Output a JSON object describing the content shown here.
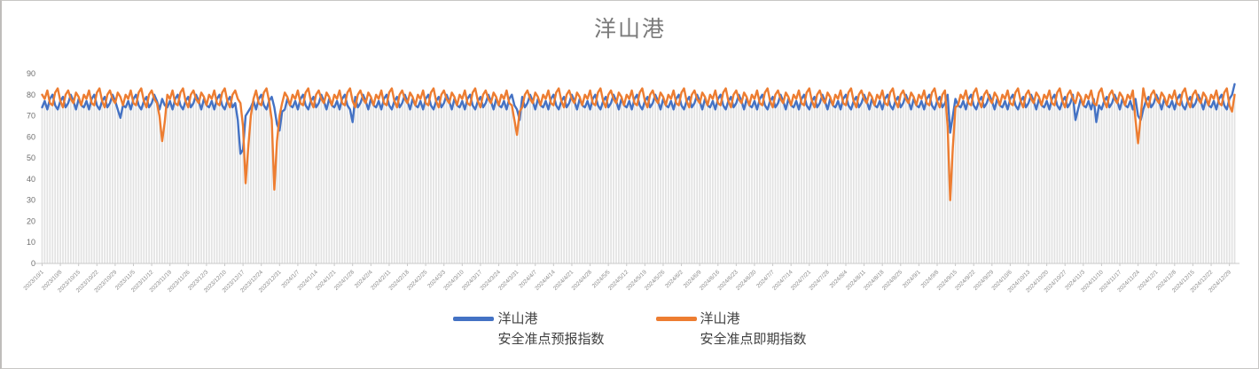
{
  "title": "洋山港",
  "legend": [
    {
      "line1": "洋山港",
      "line2": "安全准点预报指数",
      "color": "#4472C4"
    },
    {
      "line1": "洋山港",
      "line2": "安全准点即期指数",
      "color": "#ED7D31"
    }
  ],
  "chart_data": {
    "type": "line",
    "title": "洋山港",
    "x_unit": "day",
    "x_start_date": "2023/10/1",
    "x_end_date": "2024/12/31",
    "x_tick_interval_days": 7,
    "x_tick_labels": [
      "2023/10/1",
      "2023/10/8",
      "2023/10/15",
      "2023/10/22",
      "2023/10/29",
      "2023/11/5",
      "2023/11/12",
      "2023/11/19",
      "2023/11/26",
      "2023/12/3",
      "2023/12/10",
      "2023/12/17",
      "2023/12/24",
      "2023/12/31",
      "2024/1/7",
      "2024/1/14",
      "2024/1/21",
      "2024/1/28",
      "2024/2/4",
      "2024/2/11",
      "2024/2/18",
      "2024/2/25",
      "2024/3/3",
      "2024/3/10",
      "2024/3/17",
      "2024/3/24",
      "2024/3/31",
      "2024/4/7",
      "2024/4/14",
      "2024/4/21",
      "2024/4/28",
      "2024/5/5",
      "2024/5/12",
      "2024/5/19",
      "2024/5/26",
      "2024/6/2",
      "2024/6/9",
      "2024/6/16",
      "2024/6/23",
      "2024/6/30",
      "2024/7/7",
      "2024/7/14",
      "2024/7/21",
      "2024/7/28",
      "2024/8/4",
      "2024/8/11",
      "2024/8/18",
      "2024/8/25",
      "2024/9/1",
      "2024/9/8",
      "2024/9/15",
      "2024/9/22",
      "2024/9/29",
      "2024/10/6",
      "2024/10/13",
      "2024/10/20",
      "2024/10/27",
      "2024/11/3",
      "2024/11/10",
      "2024/11/17",
      "2024/11/24",
      "2024/12/1",
      "2024/12/8",
      "2024/12/15",
      "2024/12/22",
      "2024/12/29"
    ],
    "ylim": [
      0,
      90
    ],
    "y_ticks": [
      0,
      10,
      20,
      30,
      40,
      50,
      60,
      70,
      80,
      90
    ],
    "stripe_color": "#e2e2e2",
    "axis_color": "#c9c9c9",
    "legend_position": "bottom",
    "notable_events": [
      {
        "date": "2023/11/16",
        "series": "即期",
        "low": 58
      },
      {
        "date": "2023/12/16",
        "series": "预报",
        "low": 52
      },
      {
        "date": "2023/12/18",
        "series": "即期",
        "low": 38
      },
      {
        "date": "2023/12/29",
        "series": "即期",
        "low": 35
      },
      {
        "date": "2024/3/31",
        "series": "即期",
        "low": 61
      },
      {
        "date": "2024/9/13",
        "series": "即期",
        "low": 30
      },
      {
        "date": "2024/11/24",
        "series": "即期",
        "low": 57
      },
      {
        "date": "2024/12/31",
        "series": "预报",
        "high": 85
      }
    ],
    "series": [
      {
        "name": "洋山港 安全准点预报指数",
        "color": "#4472C4",
        "values": [
          74,
          77,
          73,
          78,
          80,
          75,
          73,
          77,
          79,
          74,
          76,
          80,
          77,
          73,
          78,
          75,
          74,
          77,
          73,
          78,
          80,
          75,
          73,
          77,
          79,
          74,
          76,
          80,
          77,
          73,
          69,
          75,
          74,
          77,
          73,
          78,
          80,
          75,
          73,
          77,
          79,
          74,
          76,
          80,
          77,
          73,
          78,
          75,
          74,
          77,
          73,
          78,
          80,
          75,
          73,
          77,
          79,
          74,
          76,
          80,
          77,
          73,
          78,
          75,
          74,
          77,
          73,
          78,
          80,
          75,
          73,
          77,
          79,
          74,
          76,
          68,
          52,
          54,
          70,
          72,
          74,
          77,
          73,
          78,
          80,
          75,
          73,
          77,
          79,
          74,
          66,
          63,
          72,
          73,
          78,
          75,
          74,
          77,
          73,
          78,
          80,
          75,
          73,
          77,
          79,
          74,
          76,
          80,
          77,
          73,
          78,
          75,
          74,
          77,
          73,
          78,
          80,
          75,
          73,
          67,
          79,
          74,
          76,
          80,
          77,
          73,
          78,
          75,
          74,
          77,
          73,
          78,
          80,
          75,
          73,
          77,
          79,
          74,
          76,
          80,
          77,
          73,
          78,
          75,
          74,
          77,
          73,
          78,
          80,
          75,
          73,
          77,
          79,
          74,
          76,
          80,
          77,
          73,
          78,
          75,
          74,
          77,
          73,
          78,
          80,
          75,
          73,
          77,
          79,
          74,
          76,
          80,
          77,
          73,
          78,
          75,
          74,
          77,
          73,
          78,
          80,
          75,
          73,
          68,
          79,
          74,
          76,
          80,
          77,
          73,
          78,
          75,
          74,
          77,
          73,
          78,
          80,
          75,
          73,
          77,
          79,
          74,
          76,
          80,
          77,
          73,
          78,
          75,
          74,
          77,
          73,
          78,
          80,
          75,
          73,
          77,
          79,
          74,
          76,
          80,
          77,
          73,
          78,
          75,
          74,
          77,
          73,
          78,
          80,
          75,
          73,
          77,
          79,
          74,
          76,
          80,
          77,
          73,
          78,
          75,
          74,
          77,
          73,
          78,
          80,
          75,
          73,
          77,
          79,
          74,
          76,
          80,
          77,
          73,
          78,
          75,
          74,
          77,
          73,
          78,
          80,
          75,
          73,
          77,
          79,
          74,
          76,
          80,
          77,
          73,
          78,
          75,
          74,
          77,
          73,
          78,
          80,
          75,
          73,
          77,
          79,
          74,
          76,
          80,
          77,
          73,
          78,
          75,
          74,
          77,
          73,
          78,
          80,
          75,
          73,
          77,
          79,
          74,
          76,
          80,
          77,
          73,
          78,
          75,
          74,
          77,
          73,
          78,
          80,
          75,
          73,
          77,
          79,
          74,
          76,
          80,
          77,
          73,
          78,
          75,
          74,
          77,
          73,
          78,
          80,
          75,
          73,
          77,
          79,
          74,
          76,
          80,
          77,
          73,
          78,
          75,
          74,
          77,
          73,
          78,
          80,
          75,
          73,
          77,
          79,
          74,
          76,
          80,
          62,
          70,
          78,
          75,
          74,
          77,
          73,
          78,
          80,
          75,
          73,
          77,
          79,
          74,
          76,
          80,
          77,
          73,
          78,
          75,
          74,
          77,
          73,
          78,
          80,
          75,
          73,
          77,
          79,
          74,
          76,
          80,
          77,
          73,
          78,
          75,
          74,
          77,
          73,
          78,
          80,
          75,
          73,
          77,
          79,
          74,
          76,
          80,
          68,
          73,
          78,
          75,
          74,
          77,
          73,
          78,
          67,
          75,
          73,
          77,
          79,
          74,
          76,
          80,
          77,
          73,
          78,
          75,
          74,
          77,
          73,
          78,
          70,
          68,
          73,
          77,
          79,
          74,
          76,
          80,
          77,
          73,
          78,
          75,
          74,
          77,
          73,
          78,
          80,
          75,
          73,
          77,
          79,
          74,
          76,
          80,
          77,
          73,
          78,
          75,
          74,
          77,
          73,
          78,
          80,
          75,
          73,
          78,
          80,
          85
        ]
      },
      {
        "name": "洋山港 安全准点即期指数",
        "color": "#ED7D31",
        "values": [
          80,
          78,
          82,
          76,
          75,
          81,
          83,
          77,
          74,
          80,
          82,
          78,
          76,
          81,
          79,
          75,
          80,
          78,
          82,
          76,
          75,
          81,
          83,
          77,
          74,
          80,
          82,
          78,
          76,
          81,
          79,
          75,
          80,
          78,
          82,
          76,
          75,
          81,
          83,
          77,
          74,
          80,
          82,
          78,
          76,
          70,
          58,
          67,
          80,
          78,
          82,
          76,
          75,
          81,
          83,
          77,
          74,
          80,
          82,
          78,
          76,
          81,
          79,
          75,
          80,
          78,
          82,
          76,
          75,
          81,
          83,
          77,
          74,
          80,
          82,
          78,
          76,
          65,
          38,
          55,
          70,
          78,
          82,
          76,
          75,
          81,
          83,
          77,
          68,
          35,
          58,
          70,
          76,
          81,
          79,
          75,
          80,
          78,
          82,
          76,
          75,
          81,
          83,
          77,
          74,
          80,
          82,
          78,
          76,
          81,
          79,
          75,
          80,
          78,
          82,
          76,
          75,
          81,
          83,
          77,
          74,
          80,
          82,
          78,
          76,
          81,
          79,
          75,
          80,
          78,
          82,
          76,
          75,
          81,
          83,
          77,
          74,
          80,
          82,
          78,
          76,
          81,
          79,
          75,
          80,
          78,
          82,
          76,
          75,
          81,
          83,
          77,
          74,
          80,
          82,
          78,
          76,
          81,
          79,
          75,
          80,
          78,
          82,
          76,
          75,
          81,
          83,
          77,
          74,
          80,
          82,
          78,
          76,
          81,
          79,
          75,
          80,
          78,
          82,
          76,
          75,
          68,
          61,
          72,
          74,
          80,
          82,
          78,
          76,
          81,
          79,
          75,
          80,
          78,
          82,
          76,
          75,
          81,
          83,
          77,
          74,
          80,
          82,
          78,
          76,
          81,
          79,
          75,
          80,
          78,
          82,
          76,
          75,
          81,
          83,
          77,
          74,
          80,
          82,
          78,
          76,
          81,
          79,
          75,
          80,
          78,
          82,
          76,
          75,
          81,
          83,
          77,
          74,
          80,
          82,
          78,
          76,
          81,
          79,
          75,
          80,
          78,
          82,
          76,
          75,
          81,
          83,
          77,
          74,
          80,
          82,
          78,
          76,
          81,
          79,
          75,
          80,
          78,
          82,
          76,
          75,
          81,
          83,
          77,
          74,
          80,
          82,
          78,
          76,
          81,
          79,
          75,
          80,
          78,
          82,
          76,
          75,
          81,
          83,
          77,
          74,
          80,
          82,
          78,
          76,
          81,
          79,
          75,
          80,
          78,
          82,
          76,
          75,
          81,
          83,
          77,
          74,
          80,
          82,
          78,
          76,
          81,
          79,
          75,
          80,
          78,
          82,
          76,
          75,
          81,
          83,
          77,
          74,
          80,
          82,
          78,
          76,
          81,
          79,
          75,
          80,
          78,
          82,
          76,
          75,
          81,
          83,
          77,
          74,
          80,
          82,
          78,
          76,
          81,
          79,
          75,
          80,
          78,
          82,
          76,
          75,
          81,
          83,
          77,
          74,
          80,
          82,
          65,
          30,
          55,
          74,
          75,
          80,
          78,
          82,
          76,
          75,
          81,
          83,
          77,
          74,
          80,
          82,
          78,
          76,
          81,
          79,
          75,
          80,
          78,
          82,
          76,
          75,
          81,
          83,
          77,
          74,
          80,
          82,
          78,
          76,
          81,
          79,
          75,
          80,
          78,
          82,
          76,
          75,
          81,
          83,
          77,
          74,
          80,
          82,
          78,
          76,
          81,
          79,
          75,
          80,
          78,
          82,
          76,
          75,
          81,
          83,
          77,
          74,
          80,
          82,
          78,
          76,
          81,
          79,
          75,
          80,
          78,
          82,
          68,
          57,
          70,
          83,
          77,
          74,
          80,
          82,
          78,
          76,
          81,
          79,
          75,
          80,
          78,
          82,
          76,
          75,
          81,
          83,
          77,
          74,
          80,
          82,
          78,
          76,
          81,
          79,
          75,
          80,
          78,
          82,
          76,
          75,
          81,
          83,
          75,
          72,
          80
        ]
      }
    ]
  }
}
